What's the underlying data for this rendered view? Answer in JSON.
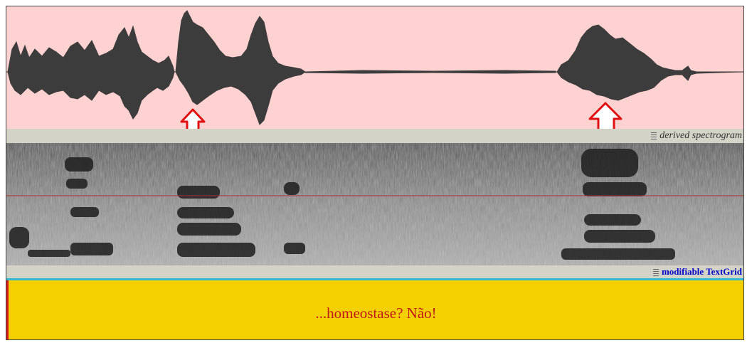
{
  "tiers": {
    "spectrogram_label": "derived spectrogram",
    "textgrid_label": "modifiable TextGrid"
  },
  "annotation": {
    "text": "...homeostase? Não!"
  },
  "icons": [
    "up-arrow-icon",
    "up-arrow-icon",
    "grip-icon"
  ],
  "colors": {
    "waveform_bg": "#ffd2d2",
    "waveform_stroke": "#3c3c3c",
    "marker_arrow": "#e01010",
    "tier_bar": "#d3d4c7",
    "textgrid_bg": "#f5d000",
    "textgrid_text": "#c01818",
    "cursor_line": "#b03030"
  }
}
